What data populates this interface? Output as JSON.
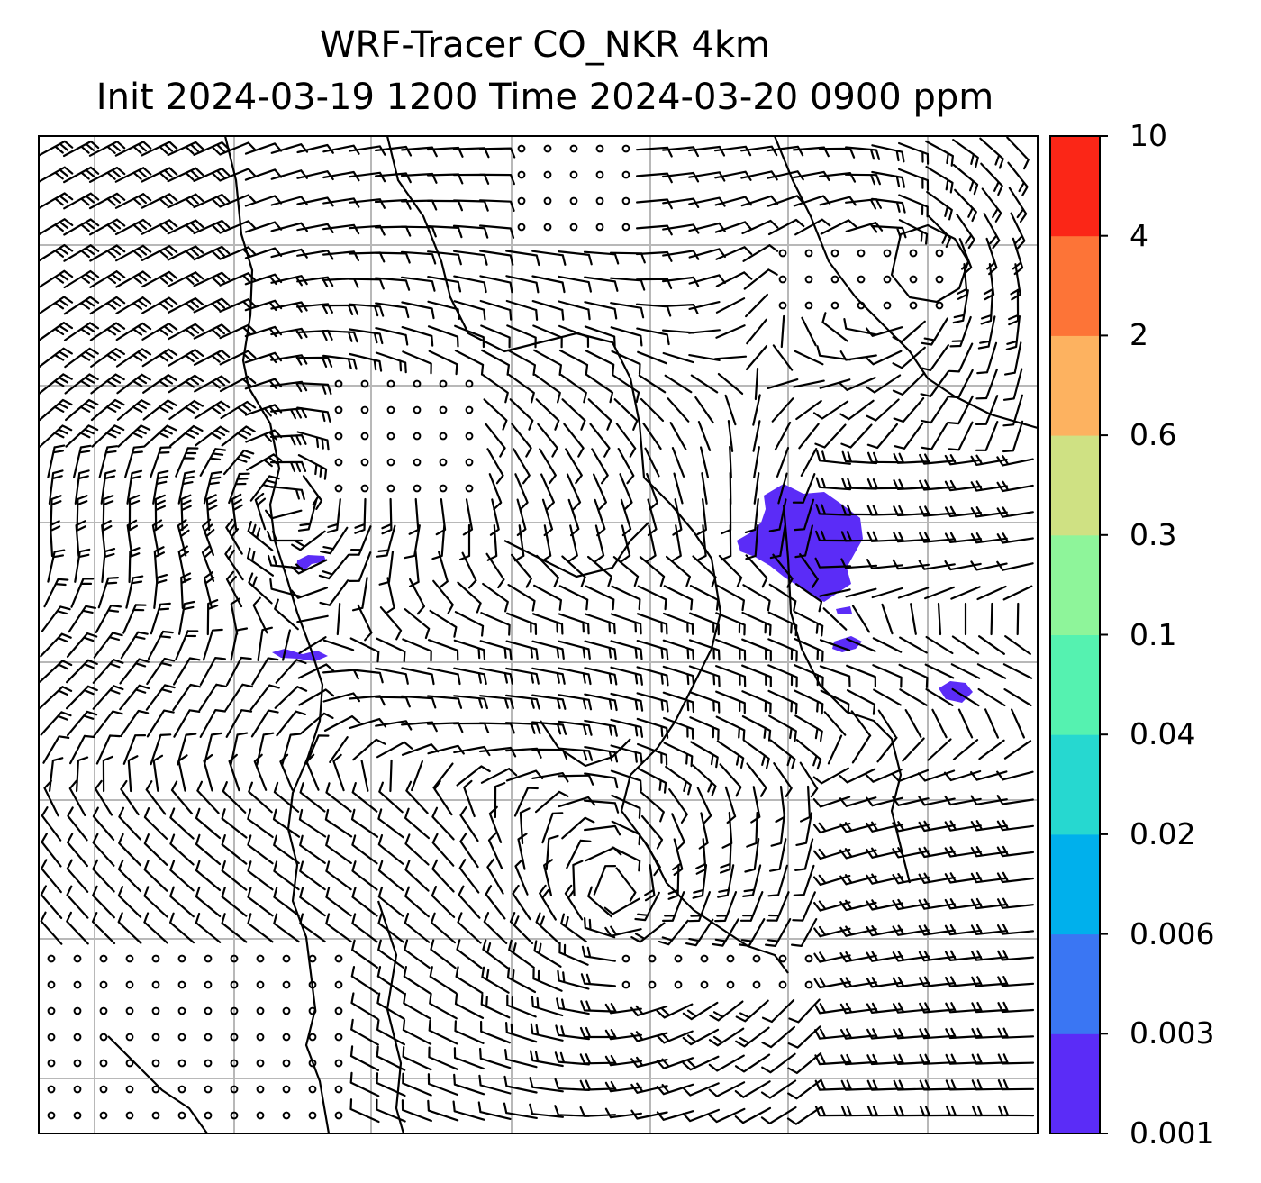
{
  "title": {
    "line1": "WRF-Tracer CO_NKR 4km",
    "line2": "Init 2024-03-19 1200 Time 2024-03-20 0900 ppm"
  },
  "colorbar": {
    "levels": [
      "0.001",
      "0.003",
      "0.006",
      "0.02",
      "0.04",
      "0.1",
      "0.3",
      "0.6",
      "2",
      "4",
      "10"
    ],
    "colors": [
      "#5b2cf7",
      "#3a76f3",
      "#00b0ec",
      "#26d8d0",
      "#55f2b0",
      "#8ef59a",
      "#cfe183",
      "#fdb260",
      "#fd7437",
      "#fb2617"
    ]
  },
  "map": {
    "barb_color": "#000000",
    "coast_color": "#000000",
    "grid_color": "#b8b8b8",
    "tracer_color": "#5b2cf7"
  }
}
